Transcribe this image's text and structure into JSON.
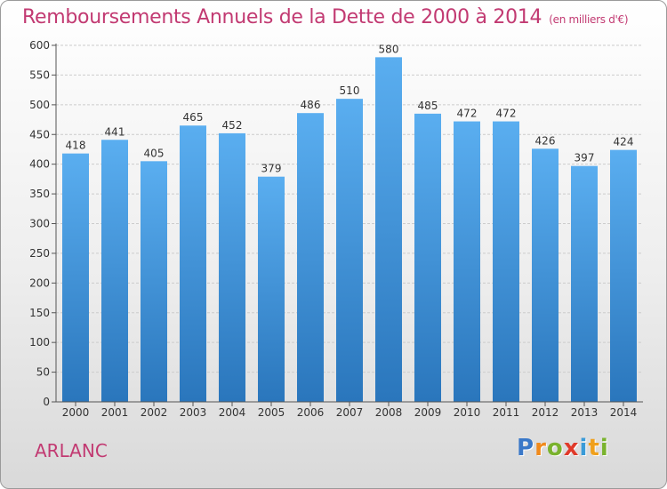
{
  "header": {
    "title": "Remboursements Annuels de la Dette de 2000 à 2014",
    "subtitle": "(en milliers d'€)"
  },
  "footer": {
    "city": "ARLANC",
    "logo": {
      "letters": [
        "P",
        "r",
        "o",
        "x",
        "i",
        "t",
        "i"
      ],
      "colors": [
        "#3a78c8",
        "#f08a1c",
        "#7ab32e",
        "#e03a2a",
        "#3a9bd8",
        "#f0a01c",
        "#7ab32e"
      ]
    }
  },
  "chart_data": {
    "type": "bar",
    "title": "Remboursements Annuels de la Dette de 2000 à 2014",
    "xlabel": "",
    "ylabel": "",
    "categories": [
      "2000",
      "2001",
      "2002",
      "2003",
      "2004",
      "2005",
      "2006",
      "2007",
      "2008",
      "2009",
      "2010",
      "2011",
      "2012",
      "2013",
      "2014"
    ],
    "values": [
      418,
      441,
      405,
      465,
      452,
      379,
      486,
      510,
      580,
      485,
      472,
      472,
      426,
      397,
      424
    ],
    "ylim": [
      0,
      600
    ],
    "yticks": [
      0,
      50,
      100,
      150,
      200,
      250,
      300,
      350,
      400,
      450,
      500,
      550,
      600
    ],
    "grid": true,
    "colors": {
      "bar_light": "#5aaef0",
      "bar_dark": "#2a76bc",
      "grid": "#cccccc",
      "axis": "#555555"
    }
  }
}
